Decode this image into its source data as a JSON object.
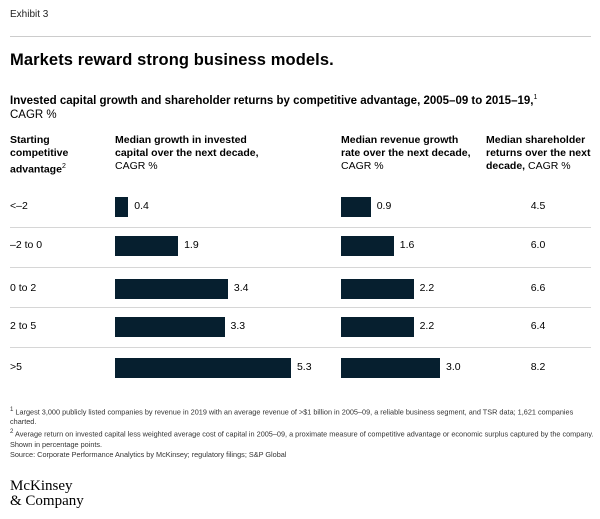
{
  "exhibit": "Exhibit 3",
  "headline": "Markets reward strong business models.",
  "subtitle": {
    "main": "Invested capital growth and shareholder returns by competitive advantage, 2005–09 to 2015–19,",
    "sup": "1",
    "unit": "CAGR %"
  },
  "columns": {
    "row_header": {
      "text": "Starting competitive advantage",
      "sup": "2"
    },
    "capital": {
      "bold": "Median growth in invested capital over the next decade,",
      "unit": "CAGR %"
    },
    "revenue": {
      "bold": "Median revenue growth rate over the next decade,",
      "unit": "CAGR %"
    },
    "returns": {
      "bold": "Median shareholder returns over the next decade,",
      "unit": "CAGR %"
    }
  },
  "chart_data": {
    "type": "bar",
    "orientation": "horizontal",
    "categories": [
      "<–2",
      "–2 to 0",
      "0 to 2",
      "2 to 5",
      ">5"
    ],
    "series": [
      {
        "name": "Median growth in invested capital over the next decade, CAGR %",
        "values": [
          0.4,
          1.9,
          3.4,
          3.3,
          5.3
        ],
        "display": [
          "0.4",
          "1.9",
          "3.4",
          "3.3",
          "5.3"
        ]
      },
      {
        "name": "Median revenue growth rate over the next decade, CAGR %",
        "values": [
          0.9,
          1.6,
          2.2,
          2.2,
          3.0
        ],
        "display": [
          "0.9",
          "1.6",
          "2.2",
          "2.2",
          "3.0"
        ]
      },
      {
        "name": "Median shareholder returns over the next decade, CAGR %",
        "values": [
          4.5,
          6.0,
          6.6,
          6.4,
          8.2
        ],
        "display": [
          "4.5",
          "6.0",
          "6.6",
          "6.4",
          "8.2"
        ]
      }
    ],
    "bar_color": "#061f2f"
  },
  "footnotes": [
    {
      "sup": "1",
      "text": "Largest 3,000 publicly listed companies by revenue in 2019 with an average revenue of >$1 billion in 2005–09, a reliable business segment, and TSR data; 1,621 companies charted."
    },
    {
      "sup": "2",
      "text": "Average return on invested capital less weighted average cost of capital in 2005–09, a proximate measure of competitive advantage or economic surplus captured by the company. Shown in percentage points."
    },
    {
      "sup": "",
      "text": "Source: Corporate Performance Analytics by McKinsey; regulatory filings; S&P Global"
    }
  ],
  "logo": {
    "line1": "McKinsey",
    "line2": "& Company"
  }
}
